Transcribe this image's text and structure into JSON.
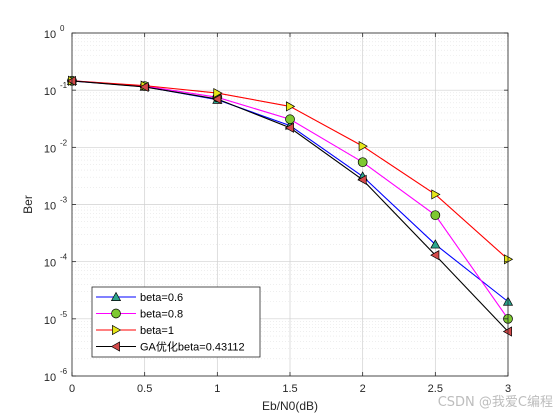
{
  "chart_data": {
    "type": "line",
    "title": "",
    "xlabel": "Eb/N0(dB)",
    "ylabel": "Ber",
    "x": [
      0,
      0.5,
      1,
      1.5,
      2,
      2.5,
      3
    ],
    "x_ticks": [
      0,
      0.5,
      1,
      1.5,
      2,
      2.5,
      3
    ],
    "x_tick_labels": [
      "0",
      "0.5",
      "1",
      "1.5",
      "2",
      "2.5",
      "3"
    ],
    "xlim": [
      0,
      3
    ],
    "y_scale": "log",
    "ylim": [
      1e-06,
      1
    ],
    "y_tick_exponents": [
      0,
      -1,
      -2,
      -3,
      -4,
      -5,
      -6
    ],
    "y_tick_base": "10",
    "grid": true,
    "minor_grid": true,
    "legend_position": "bottom-left",
    "series": [
      {
        "name": "beta=0.6",
        "color": "#0000ff",
        "marker": "triangle-up",
        "marker_color": "#2ca58d",
        "values": [
          0.145,
          0.115,
          0.068,
          0.024,
          0.0031,
          0.0002,
          2e-05
        ]
      },
      {
        "name": "beta=0.8",
        "color": "#ff00ff",
        "marker": "circle",
        "marker_color": "#7ec832",
        "values": [
          0.146,
          0.118,
          0.075,
          0.031,
          0.0055,
          0.00065,
          1e-05
        ]
      },
      {
        "name": "beta=1",
        "color": "#ff0000",
        "marker": "triangle-right",
        "marker_color": "#e6e619",
        "values": [
          0.146,
          0.12,
          0.089,
          0.052,
          0.0105,
          0.0015,
          0.00011
        ]
      },
      {
        "name": "GA优化beta=0.43112",
        "color": "#000000",
        "marker": "triangle-left",
        "marker_color": "#d44a4a",
        "values": [
          0.145,
          0.114,
          0.07,
          0.022,
          0.0027,
          0.00013,
          6e-06
        ]
      }
    ]
  },
  "watermark": "CSDN @我爱C编程"
}
